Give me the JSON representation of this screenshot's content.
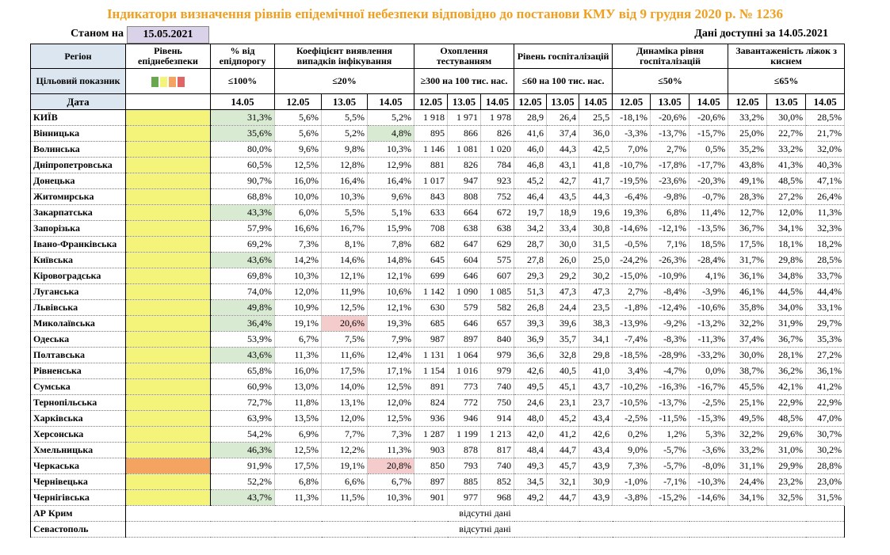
{
  "title": "Індикатори визначення рівнів епідемічної небезпеки відповідно до постанови КМУ від 9 грудня 2020 р. № 1236",
  "as_of_label": "Станом на",
  "as_of_date": "15.05.2021",
  "available": "Дані доступні за  14.05.2021",
  "header": {
    "columns": [
      "Регіон",
      "Рівень епіднебезпеки",
      "% від епідпорогу",
      "Коефіцієнт виявлення випадків інфікування",
      "Охоплення тестуванням",
      "Рівень госпіталізацій",
      "Динаміка рівня госпіталізацій",
      "Завантаженість ліжок з киснем"
    ],
    "target_label": "Цільовий показник",
    "targets": [
      "≤100%",
      "≤20%",
      "≥300 на 100 тис. нас.",
      "≤60 на 100 тис. нас.",
      "≤50%",
      "≤65%"
    ],
    "date_label": "Дата",
    "dates": [
      "14.05",
      "12.05",
      "13.05",
      "14.05",
      "12.05",
      "13.05",
      "14.05",
      "12.05",
      "13.05",
      "14.05",
      "12.05",
      "13.05",
      "14.05",
      "12.05",
      "13.05",
      "14.05"
    ]
  },
  "rows": [
    {
      "region": "КИЇВ",
      "level": "#f4f47a",
      "values": [
        "31,3%",
        "5,6%",
        "5,5%",
        "5,2%",
        "1 918",
        "1 971",
        "1 978",
        "28,9",
        "26,4",
        "25,5",
        "-18,1%",
        "-20,6%",
        "-20,6%",
        "33,2%",
        "30,0%",
        "28,5%"
      ],
      "cell_colors": {
        "0": "#d9ead3"
      }
    },
    {
      "region": "Вінницька",
      "level": "#f4f47a",
      "values": [
        "35,6%",
        "5,6%",
        "5,2%",
        "4,8%",
        "895",
        "866",
        "826",
        "41,6",
        "37,4",
        "36,0",
        "-3,3%",
        "-13,7%",
        "-15,7%",
        "25,0%",
        "22,7%",
        "21,7%"
      ],
      "cell_colors": {
        "0": "#d9ead3",
        "3": "#d9ead3"
      }
    },
    {
      "region": "Волинська",
      "level": "#f4f47a",
      "values": [
        "80,0%",
        "9,6%",
        "9,8%",
        "10,3%",
        "1 146",
        "1 081",
        "1 020",
        "46,0",
        "44,3",
        "42,5",
        "7,0%",
        "2,7%",
        "0,5%",
        "35,2%",
        "33,2%",
        "32,0%"
      ],
      "cell_colors": {}
    },
    {
      "region": "Дніпропетровська",
      "level": "#f4f47a",
      "values": [
        "60,5%",
        "12,5%",
        "12,8%",
        "12,9%",
        "881",
        "826",
        "784",
        "46,8",
        "43,1",
        "41,8",
        "-10,7%",
        "-17,8%",
        "-17,7%",
        "43,8%",
        "41,3%",
        "40,3%"
      ],
      "cell_colors": {}
    },
    {
      "region": "Донецька",
      "level": "#f4f47a",
      "values": [
        "90,7%",
        "16,0%",
        "16,4%",
        "16,4%",
        "1 017",
        "947",
        "923",
        "45,2",
        "42,7",
        "41,7",
        "-19,5%",
        "-23,6%",
        "-20,3%",
        "49,1%",
        "48,5%",
        "47,1%"
      ],
      "cell_colors": {}
    },
    {
      "region": "Житомирська",
      "level": "#f4f47a",
      "values": [
        "68,8%",
        "10,0%",
        "10,3%",
        "9,6%",
        "843",
        "808",
        "752",
        "46,4",
        "43,5",
        "44,3",
        "-6,4%",
        "-9,8%",
        "-0,7%",
        "28,3%",
        "27,2%",
        "26,4%"
      ],
      "cell_colors": {}
    },
    {
      "region": "Закарпатська",
      "level": "#f4f47a",
      "values": [
        "43,3%",
        "6,0%",
        "5,5%",
        "5,1%",
        "633",
        "664",
        "672",
        "19,7",
        "18,9",
        "19,6",
        "19,3%",
        "6,8%",
        "11,4%",
        "12,7%",
        "12,0%",
        "11,3%"
      ],
      "cell_colors": {
        "0": "#d9ead3"
      }
    },
    {
      "region": "Запорізька",
      "level": "#f4f47a",
      "values": [
        "57,9%",
        "16,6%",
        "16,7%",
        "15,9%",
        "708",
        "638",
        "638",
        "34,2",
        "33,4",
        "30,8",
        "-14,6%",
        "-12,1%",
        "-13,5%",
        "36,7%",
        "34,1%",
        "32,3%"
      ],
      "cell_colors": {}
    },
    {
      "region": "Івано-Франківська",
      "level": "#f4f47a",
      "values": [
        "69,2%",
        "7,3%",
        "8,1%",
        "7,8%",
        "682",
        "647",
        "629",
        "28,7",
        "30,0",
        "31,5",
        "-0,5%",
        "7,1%",
        "18,5%",
        "17,5%",
        "18,1%",
        "18,2%"
      ],
      "cell_colors": {}
    },
    {
      "region": "Київська",
      "level": "#f4f47a",
      "values": [
        "43,6%",
        "14,2%",
        "14,6%",
        "14,8%",
        "645",
        "604",
        "575",
        "27,8",
        "26,0",
        "25,0",
        "-24,2%",
        "-26,3%",
        "-28,4%",
        "31,7%",
        "29,8%",
        "28,5%"
      ],
      "cell_colors": {
        "0": "#d9ead3"
      }
    },
    {
      "region": "Кіровоградська",
      "level": "#f4f47a",
      "values": [
        "69,8%",
        "10,3%",
        "12,1%",
        "12,1%",
        "699",
        "646",
        "607",
        "29,3",
        "29,2",
        "30,2",
        "-15,0%",
        "-10,9%",
        "4,1%",
        "36,1%",
        "34,8%",
        "33,7%"
      ],
      "cell_colors": {}
    },
    {
      "region": "Луганська",
      "level": "#f4f47a",
      "values": [
        "74,0%",
        "12,0%",
        "11,9%",
        "10,6%",
        "1 142",
        "1 090",
        "1 085",
        "51,3",
        "47,3",
        "47,3",
        "2,7%",
        "-8,4%",
        "-3,9%",
        "46,1%",
        "44,5%",
        "44,4%"
      ],
      "cell_colors": {}
    },
    {
      "region": "Львівська",
      "level": "#f4f47a",
      "values": [
        "49,8%",
        "10,9%",
        "12,5%",
        "12,1%",
        "630",
        "579",
        "582",
        "26,8",
        "24,4",
        "23,5",
        "-1,8%",
        "-12,4%",
        "-10,6%",
        "35,8%",
        "34,0%",
        "33,1%"
      ],
      "cell_colors": {
        "0": "#d9ead3"
      }
    },
    {
      "region": "Миколаївська",
      "level": "#f4f47a",
      "values": [
        "36,4%",
        "19,1%",
        "20,6%",
        "19,3%",
        "685",
        "646",
        "657",
        "39,3",
        "39,6",
        "38,3",
        "-13,9%",
        "-9,2%",
        "-13,2%",
        "32,2%",
        "31,9%",
        "29,7%"
      ],
      "cell_colors": {
        "0": "#d9ead3",
        "2": "#f4cccc"
      }
    },
    {
      "region": "Одеська",
      "level": "#f4f47a",
      "values": [
        "53,9%",
        "6,7%",
        "7,5%",
        "7,9%",
        "987",
        "897",
        "840",
        "36,9",
        "35,7",
        "34,1",
        "-7,4%",
        "-8,3%",
        "-11,3%",
        "37,4%",
        "36,7%",
        "35,3%"
      ],
      "cell_colors": {}
    },
    {
      "region": "Полтавська",
      "level": "#f4f47a",
      "values": [
        "43,6%",
        "11,3%",
        "11,6%",
        "12,4%",
        "1 131",
        "1 064",
        "979",
        "36,6",
        "32,8",
        "29,8",
        "-18,5%",
        "-28,9%",
        "-33,2%",
        "30,0%",
        "28,1%",
        "27,2%"
      ],
      "cell_colors": {
        "0": "#d9ead3"
      }
    },
    {
      "region": "Рівненська",
      "level": "#f4f47a",
      "values": [
        "65,8%",
        "16,0%",
        "17,5%",
        "17,1%",
        "1 154",
        "1 016",
        "979",
        "42,6",
        "40,5",
        "41,0",
        "3,4%",
        "-4,7%",
        "0,0%",
        "38,7%",
        "36,2%",
        "36,1%"
      ],
      "cell_colors": {}
    },
    {
      "region": "Сумська",
      "level": "#f4f47a",
      "values": [
        "60,9%",
        "13,0%",
        "14,0%",
        "12,5%",
        "891",
        "773",
        "740",
        "49,5",
        "45,1",
        "43,7",
        "-10,2%",
        "-16,3%",
        "-16,7%",
        "45,5%",
        "42,1%",
        "41,2%"
      ],
      "cell_colors": {}
    },
    {
      "region": "Тернопільська",
      "level": "#f4f47a",
      "values": [
        "72,7%",
        "11,8%",
        "13,1%",
        "12,0%",
        "824",
        "772",
        "750",
        "24,6",
        "23,1",
        "23,7",
        "-10,5%",
        "-13,7%",
        "-2,5%",
        "25,1%",
        "22,9%",
        "22,9%"
      ],
      "cell_colors": {}
    },
    {
      "region": "Харківська",
      "level": "#f4f47a",
      "values": [
        "63,9%",
        "13,5%",
        "12,0%",
        "12,5%",
        "936",
        "946",
        "914",
        "48,0",
        "45,2",
        "43,4",
        "-2,5%",
        "-11,5%",
        "-15,3%",
        "49,5%",
        "48,5%",
        "47,0%"
      ],
      "cell_colors": {}
    },
    {
      "region": "Херсонська",
      "level": "#f4f47a",
      "values": [
        "54,2%",
        "6,9%",
        "7,7%",
        "7,3%",
        "1 287",
        "1 199",
        "1 213",
        "42,0",
        "41,2",
        "42,6",
        "0,2%",
        "1,2%",
        "5,3%",
        "32,2%",
        "29,6%",
        "30,7%"
      ],
      "cell_colors": {}
    },
    {
      "region": "Хмельницька",
      "level": "#f4f47a",
      "values": [
        "46,3%",
        "12,5%",
        "12,2%",
        "11,3%",
        "903",
        "878",
        "817",
        "48,4",
        "44,7",
        "43,4",
        "9,0%",
        "-5,7%",
        "-3,6%",
        "33,2%",
        "31,0%",
        "30,2%"
      ],
      "cell_colors": {
        "0": "#d9ead3"
      }
    },
    {
      "region": "Черкаська",
      "level": "#f4a460",
      "values": [
        "91,9%",
        "17,5%",
        "19,1%",
        "20,8%",
        "850",
        "793",
        "740",
        "49,3",
        "45,7",
        "43,9",
        "7,3%",
        "-5,7%",
        "-8,0%",
        "31,1%",
        "29,9%",
        "28,8%"
      ],
      "cell_colors": {
        "3": "#f4cccc"
      }
    },
    {
      "region": "Чернівецька",
      "level": "#f4f47a",
      "values": [
        "52,2%",
        "6,8%",
        "6,6%",
        "6,7%",
        "897",
        "885",
        "852",
        "34,5",
        "32,1",
        "30,9",
        "-1,0%",
        "-7,1%",
        "-10,3%",
        "24,4%",
        "23,2%",
        "23,0%"
      ],
      "cell_colors": {}
    },
    {
      "region": "Чернігівська",
      "level": "#f4f47a",
      "values": [
        "43,7%",
        "11,3%",
        "11,5%",
        "10,3%",
        "901",
        "977",
        "968",
        "49,2",
        "44,7",
        "43,9",
        "-3,8%",
        "-15,2%",
        "-14,6%",
        "34,1%",
        "32,5%",
        "31,5%"
      ],
      "cell_colors": {
        "0": "#d9ead3"
      }
    }
  ],
  "missing": [
    {
      "region": "АР Крим",
      "note": "відсутні дані"
    },
    {
      "region": "Севастополь",
      "note": "відсутні дані"
    }
  ]
}
